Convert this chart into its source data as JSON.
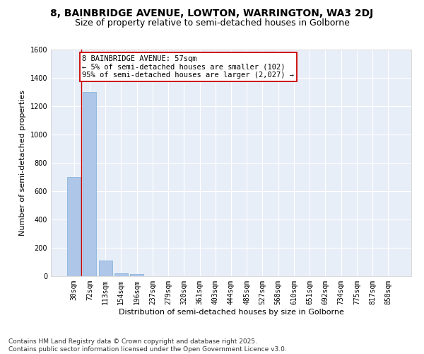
{
  "title_line1": "8, BAINBRIDGE AVENUE, LOWTON, WARRINGTON, WA3 2DJ",
  "title_line2": "Size of property relative to semi-detached houses in Golborne",
  "xlabel": "Distribution of semi-detached houses by size in Golborne",
  "ylabel": "Number of semi-detached properties",
  "categories": [
    "30sqm",
    "72sqm",
    "113sqm",
    "154sqm",
    "196sqm",
    "237sqm",
    "279sqm",
    "320sqm",
    "361sqm",
    "403sqm",
    "444sqm",
    "485sqm",
    "527sqm",
    "568sqm",
    "610sqm",
    "651sqm",
    "692sqm",
    "734sqm",
    "775sqm",
    "817sqm",
    "858sqm"
  ],
  "values": [
    700,
    1300,
    110,
    20,
    15,
    0,
    0,
    0,
    0,
    0,
    0,
    0,
    0,
    0,
    0,
    0,
    0,
    0,
    0,
    0,
    0
  ],
  "bar_color": "#aec6e8",
  "bar_edge_color": "#7dafd8",
  "background_color": "#e8eef8",
  "grid_color": "#ffffff",
  "annotation_box_color": "#cc0000",
  "annotation_text": "8 BAINBRIDGE AVENUE: 57sqm\n← 5% of semi-detached houses are smaller (102)\n95% of semi-detached houses are larger (2,027) →",
  "vline_color": "#cc0000",
  "ylim": [
    0,
    1600
  ],
  "yticks": [
    0,
    200,
    400,
    600,
    800,
    1000,
    1200,
    1400,
    1600
  ],
  "footer": "Contains HM Land Registry data © Crown copyright and database right 2025.\nContains public sector information licensed under the Open Government Licence v3.0.",
  "title_fontsize": 10,
  "subtitle_fontsize": 9,
  "axis_label_fontsize": 8,
  "tick_fontsize": 7,
  "annotation_fontsize": 7.5,
  "footer_fontsize": 6.5
}
